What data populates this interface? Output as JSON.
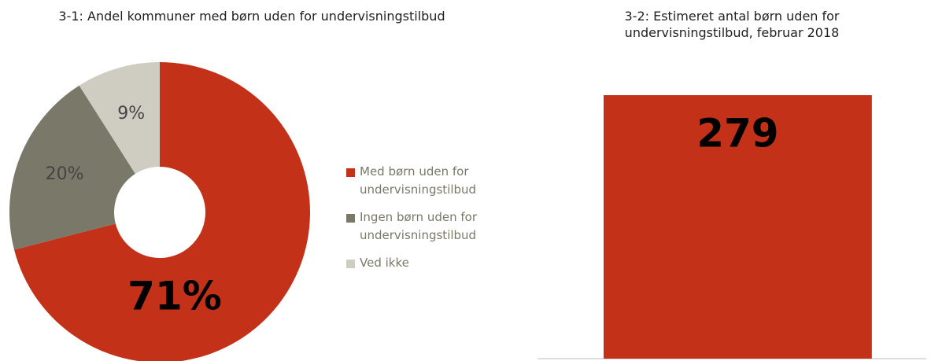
{
  "chart_data": [
    {
      "type": "pie",
      "title": "3-1: Andel kommuner med børn uden for undervisningstilbud",
      "categories": [
        "Med børn uden for undervisningstilbud",
        "Ingen børn uden for undervisningstilbud",
        "Ved ikke"
      ],
      "values": [
        71,
        20,
        9
      ],
      "value_labels": [
        "71%",
        "20%",
        "9%"
      ],
      "colors": [
        "#c33218",
        "#7a7868",
        "#cfcdc2"
      ],
      "legend": "right"
    },
    {
      "type": "bar",
      "title": "3-2: Estimeret antal børn uden for undervisningstilbud, februar 2018",
      "categories": [
        null
      ],
      "values": [
        279
      ],
      "color": "#c33218"
    }
  ]
}
